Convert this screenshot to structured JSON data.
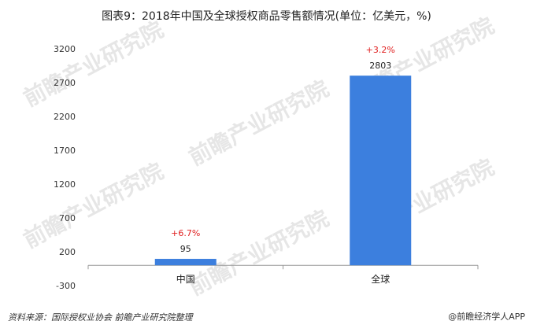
{
  "chart_data": {
    "type": "bar",
    "title": "图表9：2018年中国及全球授权商品零售额情况(单位：亿美元，%)",
    "categories": [
      "中国",
      "全球"
    ],
    "values": [
      95,
      2803
    ],
    "value_labels": [
      "95",
      "2803"
    ],
    "growth_labels": [
      "+6.7%",
      "+3.2%"
    ],
    "yticks": [
      3200,
      2700,
      2200,
      1700,
      1200,
      700,
      200,
      -300
    ],
    "ylim": [
      -300,
      3200
    ],
    "xlabel": "",
    "ylabel": "",
    "grid": false,
    "colors": {
      "bar": "#3c7fde",
      "growth": "#e02020",
      "axis": "#999999"
    }
  },
  "footer": {
    "source": "资料来源：国际授权业协会 前瞻产业研究院整理",
    "brand": "@前瞻经济学人APP"
  },
  "watermark": "前瞻产业研究院"
}
